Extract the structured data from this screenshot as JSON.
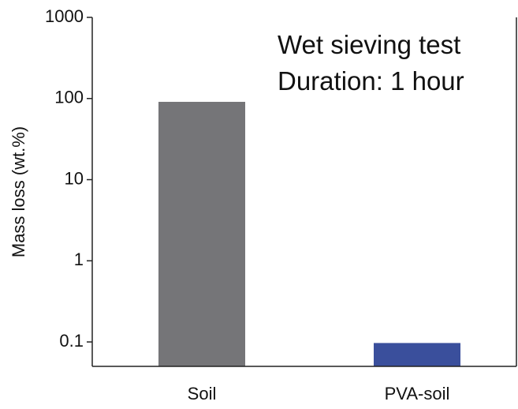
{
  "chart_data": {
    "type": "bar",
    "y_label": "Mass loss (wt.%)",
    "annotations": [
      "Wet sieving test",
      "Duration: 1 hour"
    ],
    "categories": [
      "Soil",
      "PVA-soil"
    ],
    "values": [
      91,
      0.097
    ],
    "colors": [
      "#757578",
      "#3a4f9c"
    ],
    "log_scale": true,
    "ylim": [
      0.05,
      1000
    ],
    "yticks": [
      {
        "value": 0.1,
        "label": "0.1"
      },
      1,
      10,
      100,
      1000
    ],
    "grid": false
  }
}
